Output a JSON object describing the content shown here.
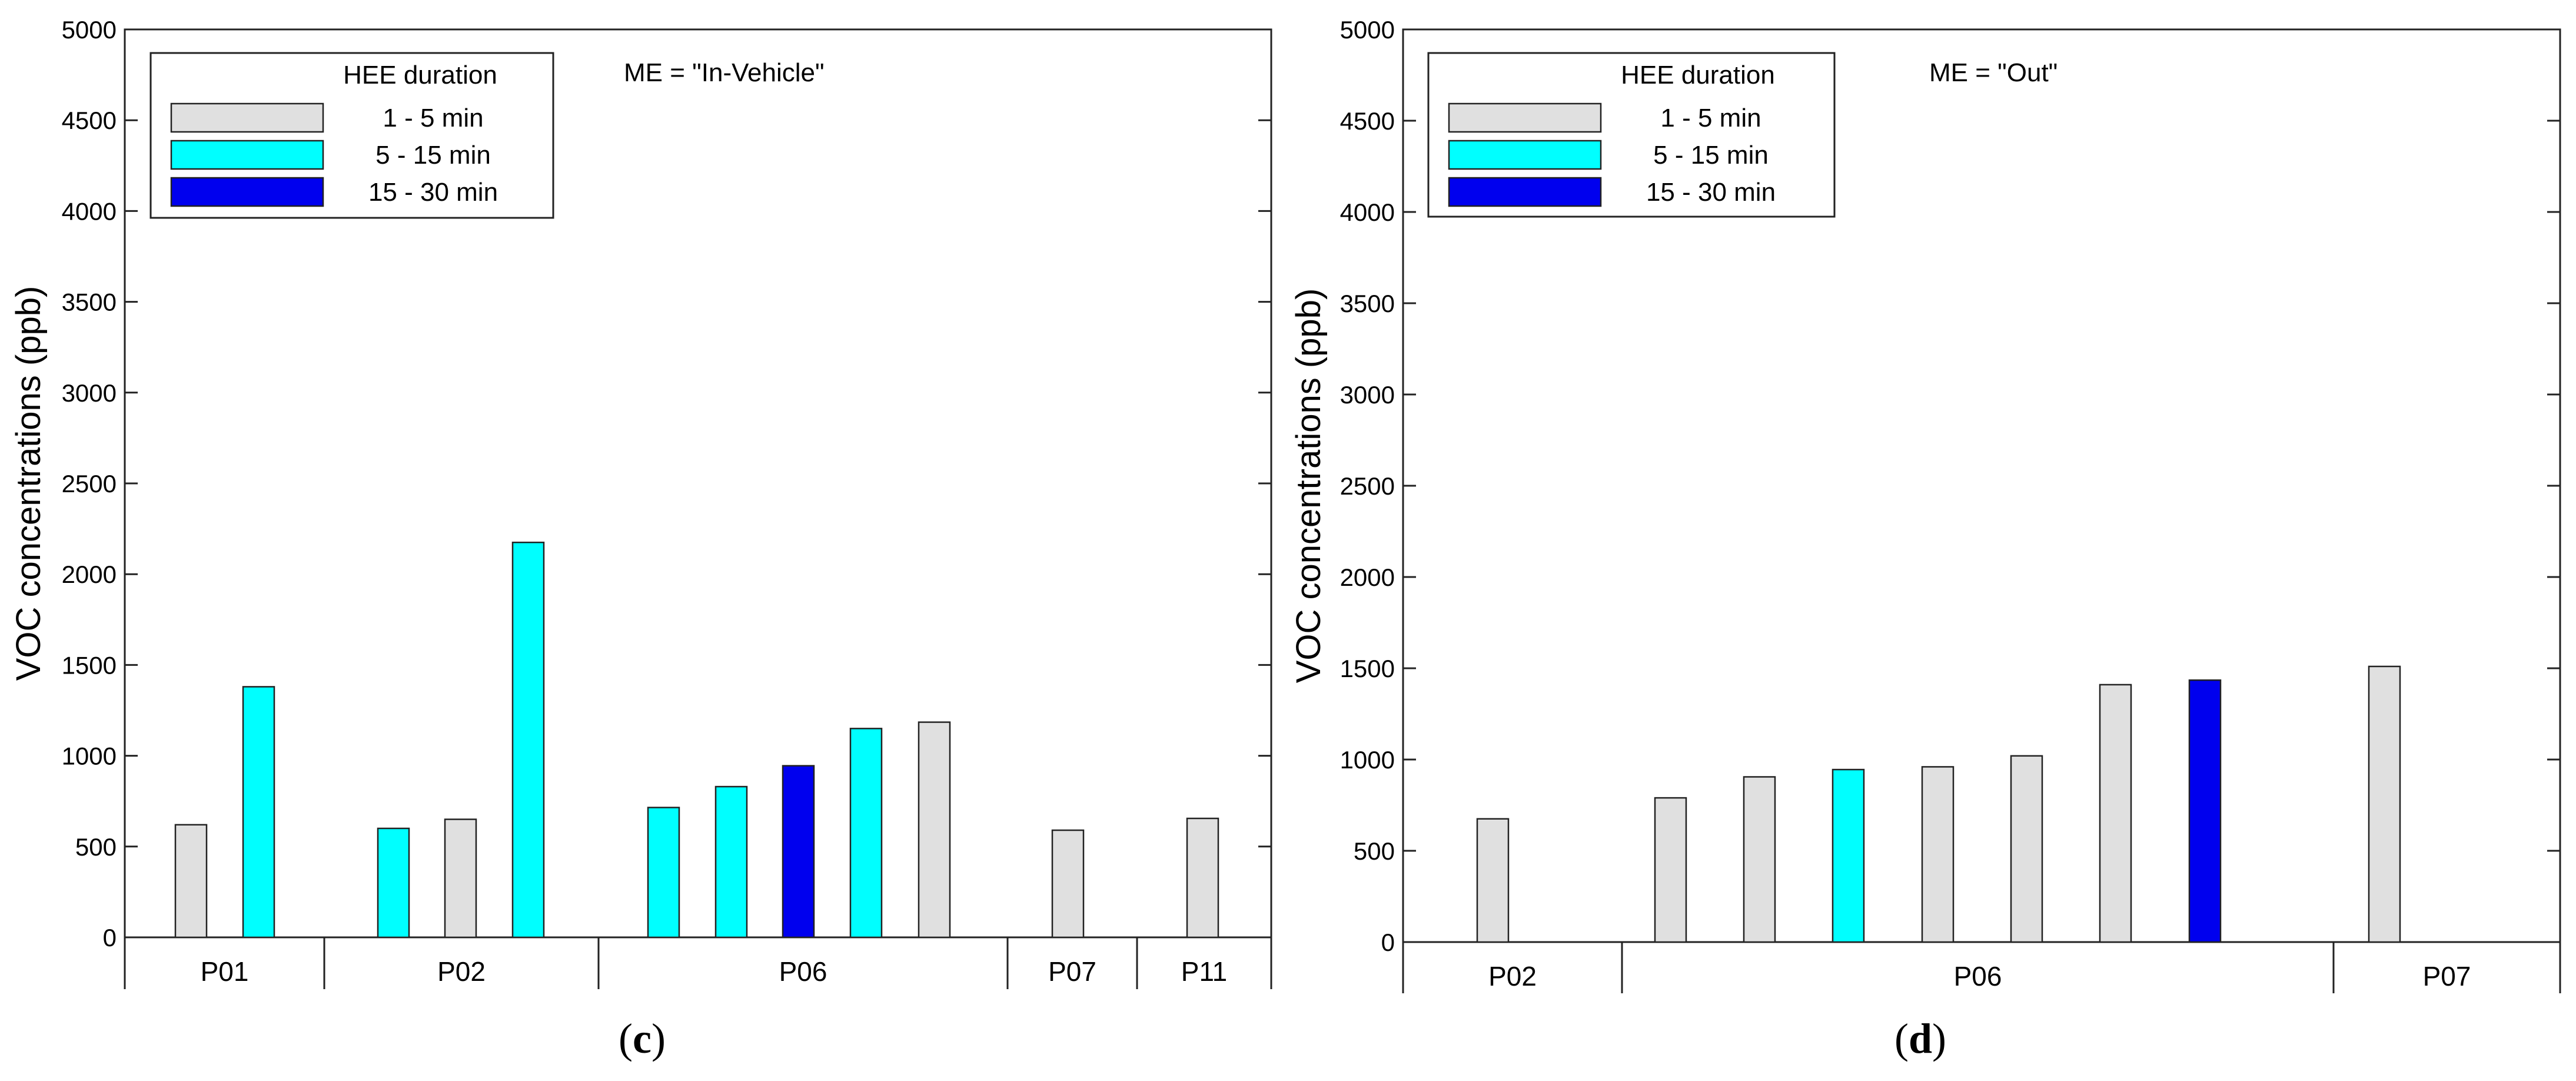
{
  "chart_data": [
    {
      "type": "bar",
      "panel_label": "c",
      "annotation": "ME = \"In-Vehicle\"",
      "ylabel": "VOC concentrations (ppb)",
      "xlabel": "",
      "ylim": [
        0,
        5000
      ],
      "yticks": [
        0,
        500,
        1000,
        1500,
        2000,
        2500,
        3000,
        3500,
        4000,
        4500,
        5000
      ],
      "legend_title": "HEE duration",
      "legend_position": "top-left",
      "bars": [
        {
          "group": "P01",
          "value": 620,
          "duration": "1 - 5 min"
        },
        {
          "group": "P01",
          "value": 1380,
          "duration": "5 - 15 min"
        },
        {
          "group": "P02",
          "value": 600,
          "duration": "5 - 15 min"
        },
        {
          "group": "P02",
          "value": 650,
          "duration": "1 - 5 min"
        },
        {
          "group": "P02",
          "value": 2175,
          "duration": "5 - 15 min"
        },
        {
          "group": "P06",
          "value": 715,
          "duration": "5 - 15 min"
        },
        {
          "group": "P06",
          "value": 830,
          "duration": "5 - 15 min"
        },
        {
          "group": "P06",
          "value": 945,
          "duration": "15 - 30 min"
        },
        {
          "group": "P06",
          "value": 1150,
          "duration": "5 - 15 min"
        },
        {
          "group": "P06",
          "value": 1185,
          "duration": "1 - 5 min"
        },
        {
          "group": "P07",
          "value": 590,
          "duration": "1 - 5 min"
        },
        {
          "group": "P11",
          "value": 655,
          "duration": "1 - 5 min"
        }
      ],
      "groups": [
        "P01",
        "P02",
        "P06",
        "P07",
        "P11"
      ]
    },
    {
      "type": "bar",
      "panel_label": "d",
      "annotation": "ME = \"Out\"",
      "ylabel": "VOC concentrations (ppb)",
      "xlabel": "",
      "ylim": [
        0,
        5000
      ],
      "yticks": [
        0,
        500,
        1000,
        1500,
        2000,
        2500,
        3000,
        3500,
        4000,
        4500,
        5000
      ],
      "legend_title": "HEE duration",
      "legend_position": "top-left",
      "bars": [
        {
          "group": "P02",
          "value": 675,
          "duration": "1 - 5 min"
        },
        {
          "group": "P06",
          "value": 790,
          "duration": "1 - 5 min"
        },
        {
          "group": "P06",
          "value": 905,
          "duration": "1 - 5 min"
        },
        {
          "group": "P06",
          "value": 945,
          "duration": "5 - 15 min"
        },
        {
          "group": "P06",
          "value": 960,
          "duration": "1 - 5 min"
        },
        {
          "group": "P06",
          "value": 1020,
          "duration": "1 - 5 min"
        },
        {
          "group": "P06",
          "value": 1410,
          "duration": "1 - 5 min"
        },
        {
          "group": "P06",
          "value": 1435,
          "duration": "15 - 30 min"
        },
        {
          "group": "P07",
          "value": 1510,
          "duration": "1 - 5 min"
        }
      ],
      "groups": [
        "P02",
        "P06",
        "P07"
      ]
    }
  ],
  "legend_items": [
    {
      "label": "1 - 5 min",
      "color": "#e0e0e0"
    },
    {
      "label": "5 - 15 min",
      "color": "#00ffff"
    },
    {
      "label": "15 - 30 min",
      "color": "#0000ee"
    }
  ]
}
